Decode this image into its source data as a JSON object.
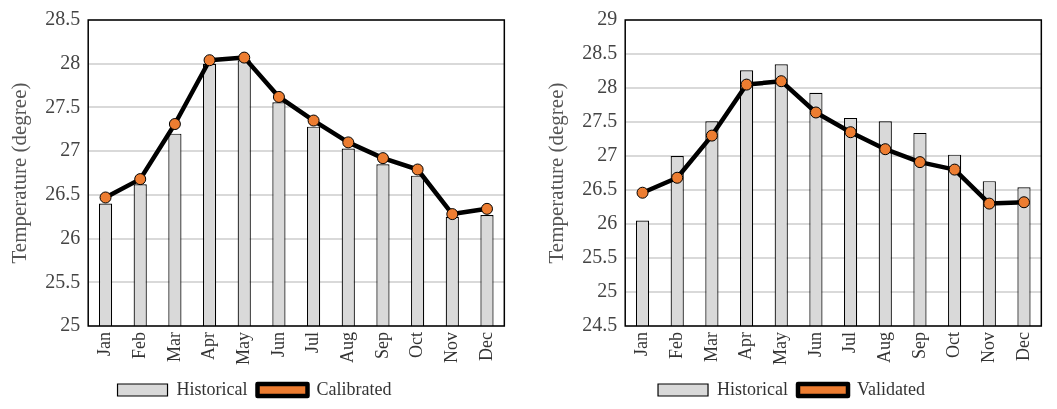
{
  "chart_data": [
    {
      "type": "bar",
      "ylabel": "Temperature (degree)",
      "categories": [
        "Jan",
        "Feb",
        "Mar",
        "Apr",
        "May",
        "Jun",
        "Jul",
        "Aug",
        "Sep",
        "Oct",
        "Nov",
        "Dec"
      ],
      "ylim": [
        25,
        28.5
      ],
      "yticks": [
        25,
        25.5,
        26,
        26.5,
        27,
        27.5,
        28,
        28.5
      ],
      "grid": "y",
      "legend": "bottom",
      "marker": "circle",
      "series": [
        {
          "name": "Historical",
          "color": "#d9d9d9",
          "values": [
            26.4,
            26.62,
            27.2,
            28.0,
            28.04,
            27.56,
            27.28,
            27.03,
            26.85,
            26.72,
            26.25,
            26.27
          ]
        },
        {
          "name": "Calibrated",
          "type": "line",
          "color": "#000000",
          "values": [
            26.47,
            26.68,
            27.31,
            28.04,
            28.07,
            27.62,
            27.35,
            27.1,
            26.92,
            26.79,
            26.28,
            26.34
          ]
        }
      ]
    },
    {
      "type": "bar",
      "ylabel": "Temperature (degree)",
      "categories": [
        "Jan",
        "Feb",
        "Mar",
        "Apr",
        "May",
        "Jun",
        "Jul",
        "Aug",
        "Sep",
        "Oct",
        "Nov",
        "Dec"
      ],
      "ylim": [
        24.5,
        29
      ],
      "yticks": [
        24.5,
        25,
        25.5,
        26,
        26.5,
        27,
        27.5,
        28,
        28.5,
        29
      ],
      "grid": "y",
      "legend": "bottom",
      "marker": "circle",
      "series": [
        {
          "name": "Historical",
          "color": "#d9d9d9",
          "values": [
            26.05,
            27.0,
            27.51,
            28.26,
            28.35,
            27.93,
            27.56,
            27.51,
            27.34,
            27.02,
            26.63,
            26.54
          ]
        },
        {
          "name": "Validated",
          "type": "line",
          "color": "#000000",
          "values": [
            26.46,
            26.68,
            27.3,
            28.05,
            28.1,
            27.64,
            27.35,
            27.1,
            26.91,
            26.8,
            26.3,
            26.32
          ]
        }
      ]
    }
  ]
}
